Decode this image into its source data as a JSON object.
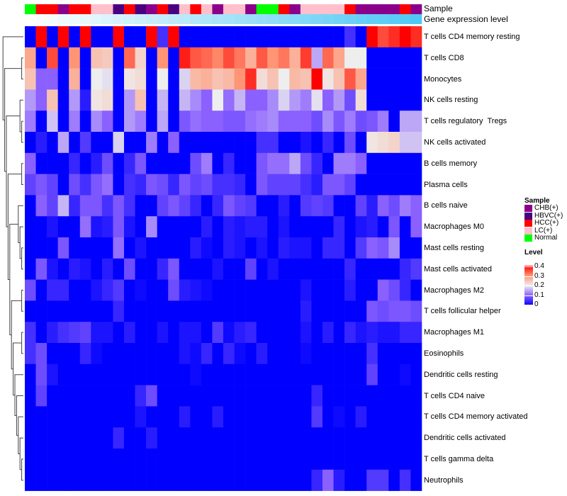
{
  "chart_data": {
    "type": "heatmap",
    "annotation_labels": {
      "sample": "Sample",
      "gene_level": "Gene expression level"
    },
    "rows": [
      "T cells CD4 memory resting",
      "T cells CD8",
      "Monocytes",
      "NK cells resting",
      "T cells regulatory  Tregs",
      "NK cells activated",
      "B cells memory",
      "Plasma cells",
      "B cells naive",
      "Macrophages M0",
      "Mast cells resting",
      "Mast cells activated",
      "Macrophages M2",
      "T cells follicular helper",
      "Macrophages M1",
      "Eosinophils",
      "Dendritic cells resting",
      "T cells CD4 naive",
      "T cells CD4 memory activated",
      "Dendritic cells activated",
      "T cells gamma delta",
      "Neutrophils"
    ],
    "sample_groups": [
      "Normal",
      "HCC(+)",
      "HCC(+)",
      "CHB(+)",
      "HCC(+)",
      "HCC(+)",
      "LC(+)",
      "LC(+)",
      "HBVC(+)",
      "HCC(+)",
      "HBVC(+)",
      "CHB(+)",
      "HCC(+)",
      "HBVC(+)",
      "LC(+)",
      "HCC(+)",
      "LC(+)",
      "CHB(+)",
      "LC(+)",
      "LC(+)",
      "CHB(+)",
      "Normal",
      "Normal",
      "HCC(+)",
      "CHB(+)",
      "LC(+)",
      "LC(+)",
      "LC(+)",
      "LC(+)",
      "HCC(+)",
      "CHB(+)",
      "CHB(+)",
      "CHB(+)",
      "CHB(+)",
      "HCC(+)",
      "CHB(+)"
    ],
    "gene_expression_level_relative": [
      0,
      0.03,
      0.06,
      0.09,
      0.11,
      0.14,
      0.17,
      0.2,
      0.23,
      0.26,
      0.29,
      0.31,
      0.34,
      0.37,
      0.4,
      0.43,
      0.46,
      0.49,
      0.51,
      0.54,
      0.57,
      0.6,
      0.63,
      0.66,
      0.69,
      0.71,
      0.74,
      0.77,
      0.8,
      0.83,
      0.86,
      0.89,
      0.91,
      0.94,
      0.97,
      1
    ],
    "values": [
      [
        0,
        0.4,
        0,
        0.4,
        0,
        0.4,
        0,
        0,
        0.4,
        0,
        0,
        0.4,
        0.05,
        0.4,
        0,
        0,
        0,
        0,
        0,
        0,
        0,
        0,
        0,
        0,
        0,
        0,
        0,
        0,
        0,
        0.05,
        0,
        0.4,
        0.35,
        0.37,
        0.4,
        0.37
      ],
      [
        0.28,
        0,
        0.35,
        0,
        0.3,
        0,
        0.25,
        0.24,
        0,
        0.33,
        0.23,
        0,
        0.3,
        0,
        0.38,
        0.34,
        0.33,
        0.31,
        0.35,
        0.32,
        0.27,
        0.34,
        0.3,
        0.32,
        0.27,
        0.36,
        0.15,
        0.33,
        0.28,
        0.2,
        0.2,
        0,
        0,
        0,
        0,
        0
      ],
      [
        0.25,
        0.1,
        0.1,
        0,
        0.27,
        0,
        0.2,
        0.19,
        0,
        0.21,
        0.22,
        0,
        0.2,
        0,
        0.18,
        0.26,
        0.27,
        0.25,
        0.26,
        0.3,
        0.37,
        0.22,
        0.25,
        0.2,
        0.26,
        0.25,
        0.4,
        0.21,
        0.25,
        0.34,
        0.28,
        0,
        0,
        0,
        0,
        0
      ],
      [
        0.14,
        0.1,
        0.25,
        0,
        0.14,
        0.03,
        0.21,
        0.22,
        0,
        0.14,
        0.25,
        0,
        0.16,
        0,
        0.16,
        0.13,
        0.1,
        0.2,
        0.11,
        0.16,
        0.1,
        0.1,
        0.13,
        0.18,
        0.14,
        0.12,
        0.19,
        0.1,
        0.14,
        0.08,
        0.22,
        0,
        0,
        0,
        0,
        0
      ],
      [
        0.12,
        0,
        0.17,
        0,
        0.12,
        0,
        0.13,
        0.1,
        0,
        0.14,
        0.12,
        0,
        0.15,
        0,
        0.09,
        0.11,
        0.1,
        0.1,
        0.09,
        0.09,
        0.11,
        0.12,
        0.13,
        0.1,
        0.1,
        0.1,
        0.08,
        0.13,
        0.09,
        0.12,
        0.08,
        0.09,
        0.12,
        0,
        0.15,
        0.15
      ],
      [
        0,
        0.03,
        0,
        0.15,
        0,
        0.06,
        0,
        0,
        0.18,
        0,
        0,
        0.12,
        0,
        0.1,
        0,
        0,
        0,
        0,
        0,
        0,
        0,
        0.05,
        0.05,
        0,
        0,
        0.02,
        0,
        0.04,
        0,
        0.08,
        0,
        0.21,
        0.22,
        0.23,
        0.17,
        0.17
      ],
      [
        0.1,
        0,
        0,
        0,
        0.04,
        0,
        0.03,
        0.08,
        0,
        0.04,
        0.09,
        0,
        0,
        0,
        0,
        0.08,
        0.12,
        0,
        0.04,
        0,
        0,
        0.09,
        0.11,
        0.11,
        0.15,
        0.08,
        0.04,
        0,
        0.12,
        0.12,
        0.1,
        0,
        0,
        0,
        0,
        0
      ],
      [
        0.07,
        0.09,
        0.07,
        0,
        0.08,
        0.05,
        0.09,
        0.11,
        0,
        0.05,
        0.04,
        0.09,
        0.08,
        0.04,
        0.09,
        0.07,
        0.08,
        0.05,
        0.05,
        0.04,
        0,
        0.09,
        0.07,
        0.07,
        0.07,
        0.05,
        0.03,
        0.09,
        0.09,
        0.07,
        0,
        0,
        0,
        0,
        0,
        0
      ],
      [
        0,
        0.1,
        0.07,
        0.16,
        0.04,
        0.09,
        0.09,
        0.05,
        0.09,
        0.05,
        0,
        0,
        0.07,
        0.09,
        0.07,
        0.04,
        0,
        0.04,
        0.09,
        0.07,
        0.06,
        0,
        0,
        0.03,
        0,
        0.06,
        0.07,
        0.06,
        0,
        0,
        0.07,
        0.03,
        0.1,
        0.08,
        0.12,
        0.1
      ],
      [
        0,
        0,
        0.02,
        0,
        0,
        0.11,
        0.02,
        0.03,
        0.09,
        0.02,
        0,
        0.13,
        0,
        0,
        0,
        0,
        0.03,
        0,
        0.03,
        0.02,
        0.03,
        0.03,
        0,
        0.02,
        0,
        0,
        0,
        0,
        0.04,
        0,
        0.02,
        0.03,
        0,
        0.09,
        0,
        0.1
      ],
      [
        0,
        0,
        0,
        0.09,
        0,
        0,
        0,
        0,
        0.11,
        0,
        0.02,
        0,
        0,
        0,
        0,
        0.03,
        0.01,
        0,
        0.03,
        0.02,
        0,
        0.02,
        0,
        0.03,
        0.02,
        0.02,
        0,
        0.04,
        0.04,
        0,
        0.06,
        0.1,
        0.09,
        0.13,
        0,
        0
      ],
      [
        0,
        0.09,
        0.02,
        0,
        0.03,
        0.02,
        0,
        0.03,
        0,
        0.08,
        0,
        0,
        0.04,
        0.09,
        0,
        0,
        0,
        0.02,
        0,
        0,
        0.07,
        0,
        0.02,
        0,
        0,
        0,
        0,
        0,
        0,
        0.04,
        0,
        0,
        0,
        0,
        0.04,
        0.06
      ],
      [
        0.08,
        0,
        0.04,
        0.04,
        0,
        0,
        0.02,
        0.04,
        0.06,
        0,
        0.01,
        0,
        0,
        0.08,
        0.03,
        0.02,
        0.01,
        0,
        0,
        0,
        0,
        0,
        0,
        0,
        0,
        0.02,
        0,
        0,
        0,
        0.03,
        0,
        0,
        0.1,
        0.08,
        0.04,
        0
      ],
      [
        0,
        0,
        0,
        0,
        0,
        0,
        0,
        0,
        0.04,
        0,
        0,
        0,
        0,
        0,
        0,
        0,
        0,
        0,
        0,
        0,
        0,
        0,
        0,
        0,
        0,
        0.03,
        0,
        0,
        0,
        0,
        0,
        0.09,
        0.08,
        0.09,
        0.09,
        0.08
      ],
      [
        0.05,
        0,
        0.03,
        0.05,
        0.06,
        0.07,
        0.02,
        0.02,
        0,
        0.03,
        0,
        0,
        0.02,
        0,
        0.02,
        0.02,
        0,
        0.06,
        0.01,
        0.03,
        0.04,
        0,
        0,
        0,
        0,
        0.02,
        0,
        0.03,
        0,
        0.04,
        0.02,
        0.03,
        0.02,
        0.02,
        0.04,
        0.04
      ],
      [
        0.05,
        0.08,
        0,
        0,
        0,
        0.04,
        0.01,
        0,
        0,
        0,
        0,
        0,
        0,
        0,
        0.02,
        0.01,
        0.04,
        0,
        0.04,
        0.01,
        0,
        0.03,
        0,
        0,
        0,
        0.01,
        0,
        0,
        0,
        0,
        0,
        0.05,
        0,
        0,
        0,
        0
      ],
      [
        0,
        0.08,
        0.02,
        0,
        0,
        0,
        0,
        0,
        0,
        0,
        0,
        0,
        0,
        0,
        0,
        0.01,
        0,
        0,
        0,
        0,
        0,
        0,
        0,
        0,
        0,
        0,
        0,
        0,
        0,
        0,
        0,
        0.07,
        0,
        0,
        0.01,
        0
      ],
      [
        0,
        0.07,
        0,
        0,
        0,
        0,
        0,
        0,
        0,
        0,
        0.04,
        0.08,
        0,
        0,
        0,
        0,
        0,
        0,
        0,
        0,
        0,
        0,
        0,
        0,
        0,
        0,
        0.04,
        0,
        0,
        0,
        0,
        0,
        0,
        0,
        0,
        0
      ],
      [
        0,
        0,
        0,
        0,
        0,
        0,
        0,
        0,
        0,
        0,
        0.02,
        0,
        0,
        0,
        0.03,
        0,
        0,
        0.03,
        0,
        0,
        0,
        0,
        0,
        0,
        0,
        0,
        0.06,
        0,
        0.01,
        0,
        0.03,
        0,
        0,
        0,
        0,
        0
      ],
      [
        0,
        0,
        0,
        0,
        0,
        0,
        0,
        0,
        0.04,
        0,
        0,
        0.03,
        0,
        0,
        0,
        0,
        0,
        0,
        0,
        0,
        0,
        0,
        0,
        0,
        0,
        0,
        0,
        0,
        0,
        0,
        0,
        0,
        0,
        0,
        0,
        0
      ],
      [
        0,
        0,
        0,
        0,
        0,
        0,
        0,
        0,
        0,
        0,
        0,
        0,
        0,
        0,
        0,
        0,
        0,
        0,
        0,
        0,
        0,
        0,
        0,
        0,
        0,
        0,
        0,
        0,
        0,
        0,
        0,
        0,
        0,
        0,
        0,
        0
      ],
      [
        0,
        0,
        0,
        0,
        0,
        0,
        0,
        0,
        0,
        0,
        0,
        0,
        0,
        0,
        0,
        0,
        0,
        0,
        0,
        0,
        0,
        0,
        0,
        0,
        0,
        0,
        0.04,
        0.1,
        0.03,
        0,
        0,
        0.06,
        0.06,
        0,
        0.05,
        0
      ]
    ],
    "color_scale": {
      "min": 0,
      "max": 0.4,
      "low": "#0000FF",
      "mid": "#EEEEEE",
      "high": "#FF0000"
    },
    "legend": {
      "sample_title": "Sample",
      "sample_items": [
        {
          "label": "CHB(+)",
          "color": "#8B008B"
        },
        {
          "label": "HBVC(+)",
          "color": "#4B0082"
        },
        {
          "label": "HCC(+)",
          "color": "#FF0000"
        },
        {
          "label": "LC(+)",
          "color": "#FFC0CB"
        },
        {
          "label": "Normal",
          "color": "#00FF00"
        }
      ],
      "level_title": "Level",
      "level_ticks": [
        "0.4",
        "0.3",
        "0.2",
        "0.1",
        "0"
      ],
      "placement": "right"
    },
    "gene_level_color": "#4FC8F5"
  }
}
